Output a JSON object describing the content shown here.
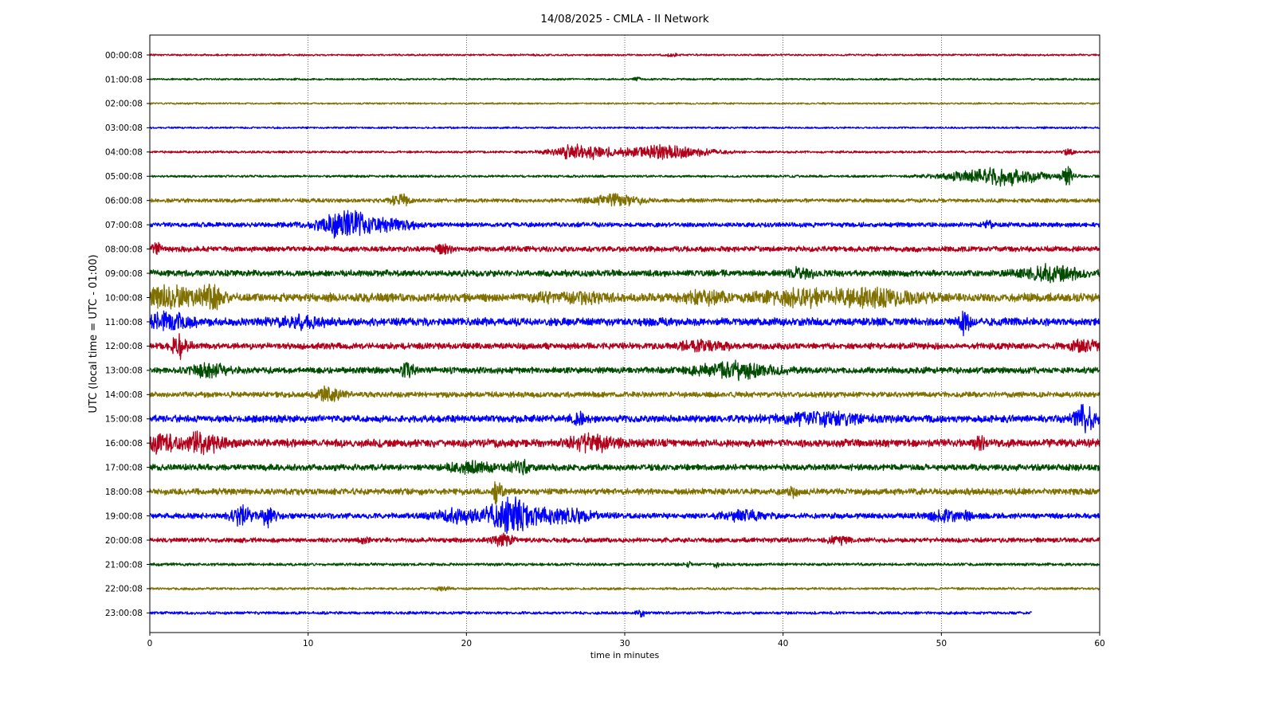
{
  "chart_data": {
    "type": "line",
    "title": "14/08/2025 - CMLA - II Network",
    "xlabel": "time in minutes",
    "ylabel": "UTC (local time = UTC - 01:00)",
    "xlim": [
      0,
      60
    ],
    "x_ticks": [
      "0",
      "10",
      "20",
      "30",
      "40",
      "50",
      "60"
    ],
    "grid": "vertical dotted",
    "colors": [
      "#b2001a",
      "#004c00",
      "#807000",
      "#0000ff"
    ],
    "rows": [
      {
        "label": "00:00:08",
        "end_minute": 60,
        "base_amp": 0.12,
        "events": [
          {
            "t": 33,
            "w": 0.3,
            "a": 0.2
          }
        ]
      },
      {
        "label": "01:00:08",
        "end_minute": 60,
        "base_amp": 0.12,
        "events": [
          {
            "t": 30.8,
            "w": 0.2,
            "a": 0.3
          }
        ]
      },
      {
        "label": "02:00:08",
        "end_minute": 60,
        "base_amp": 0.11,
        "events": []
      },
      {
        "label": "03:00:08",
        "end_minute": 60,
        "base_amp": 0.12,
        "events": []
      },
      {
        "label": "04:00:08",
        "end_minute": 60,
        "base_amp": 0.15,
        "events": [
          {
            "t": 27.2,
            "w": 1.8,
            "a": 0.9
          },
          {
            "t": 32.5,
            "w": 2.6,
            "a": 0.85
          },
          {
            "t": 58,
            "w": 0.3,
            "a": 0.4
          }
        ]
      },
      {
        "label": "05:00:08",
        "end_minute": 60,
        "base_amp": 0.15,
        "events": [
          {
            "t": 53.5,
            "w": 3,
            "a": 1.05
          },
          {
            "t": 58,
            "w": 0.4,
            "a": 0.9
          }
        ]
      },
      {
        "label": "06:00:08",
        "end_minute": 60,
        "base_amp": 0.25,
        "events": [
          {
            "t": 15.8,
            "w": 0.6,
            "a": 0.7
          },
          {
            "t": 29.5,
            "w": 1.5,
            "a": 0.7
          }
        ]
      },
      {
        "label": "07:00:08",
        "end_minute": 60,
        "base_amp": 0.3,
        "events": [
          {
            "t": 12.4,
            "w": 1.6,
            "a": 1.8
          },
          {
            "t": 15.5,
            "w": 1.4,
            "a": 0.6
          },
          {
            "t": 53,
            "w": 0.3,
            "a": 0.5
          }
        ]
      },
      {
        "label": "08:00:08",
        "end_minute": 60,
        "base_amp": 0.35,
        "events": [
          {
            "t": 0.4,
            "w": 0.3,
            "a": 0.6
          },
          {
            "t": 18.5,
            "w": 0.5,
            "a": 0.5
          }
        ]
      },
      {
        "label": "09:00:08",
        "end_minute": 60,
        "base_amp": 0.4,
        "events": [
          {
            "t": 41.2,
            "w": 0.8,
            "a": 0.6
          },
          {
            "t": 57,
            "w": 2,
            "a": 0.8
          }
        ]
      },
      {
        "label": "10:00:08",
        "end_minute": 60,
        "base_amp": 0.55,
        "events": [
          {
            "t": 1.3,
            "w": 1.5,
            "a": 1.2
          },
          {
            "t": 3.8,
            "w": 0.8,
            "a": 1.3
          },
          {
            "t": 27,
            "w": 2,
            "a": 0.5
          },
          {
            "t": 35,
            "w": 1.5,
            "a": 0.5
          },
          {
            "t": 41,
            "w": 2.5,
            "a": 0.8
          },
          {
            "t": 46,
            "w": 2.5,
            "a": 0.9
          }
        ]
      },
      {
        "label": "11:00:08",
        "end_minute": 60,
        "base_amp": 0.5,
        "events": [
          {
            "t": 1.2,
            "w": 1.5,
            "a": 0.9
          },
          {
            "t": 9.5,
            "w": 1.5,
            "a": 0.6
          },
          {
            "t": 51.5,
            "w": 0.3,
            "a": 1.3
          }
        ]
      },
      {
        "label": "12:00:08",
        "end_minute": 60,
        "base_amp": 0.4,
        "events": [
          {
            "t": 1.9,
            "w": 0.5,
            "a": 1.6
          },
          {
            "t": 35,
            "w": 1.5,
            "a": 0.5
          },
          {
            "t": 59,
            "w": 1,
            "a": 0.6
          }
        ]
      },
      {
        "label": "13:00:08",
        "end_minute": 60,
        "base_amp": 0.4,
        "events": [
          {
            "t": 3.8,
            "w": 1.2,
            "a": 0.8
          },
          {
            "t": 16.3,
            "w": 0.5,
            "a": 0.7
          },
          {
            "t": 37,
            "w": 2.5,
            "a": 0.8
          }
        ]
      },
      {
        "label": "14:00:08",
        "end_minute": 60,
        "base_amp": 0.35,
        "events": [
          {
            "t": 11.3,
            "w": 0.8,
            "a": 0.9
          }
        ]
      },
      {
        "label": "15:00:08",
        "end_minute": 60,
        "base_amp": 0.45,
        "events": [
          {
            "t": 27,
            "w": 0.5,
            "a": 0.6
          },
          {
            "t": 42.5,
            "w": 3,
            "a": 0.6
          },
          {
            "t": 59,
            "w": 0.7,
            "a": 1.6
          }
        ]
      },
      {
        "label": "16:00:08",
        "end_minute": 60,
        "base_amp": 0.5,
        "events": [
          {
            "t": 0.5,
            "w": 0.8,
            "a": 1.3
          },
          {
            "t": 3.2,
            "w": 1.3,
            "a": 1.2
          },
          {
            "t": 28,
            "w": 1.5,
            "a": 0.8
          },
          {
            "t": 52.5,
            "w": 0.4,
            "a": 0.8
          }
        ]
      },
      {
        "label": "17:00:08",
        "end_minute": 60,
        "base_amp": 0.4,
        "events": [
          {
            "t": 20.5,
            "w": 1.5,
            "a": 0.6
          },
          {
            "t": 23.3,
            "w": 0.6,
            "a": 0.9
          }
        ]
      },
      {
        "label": "18:00:08",
        "end_minute": 60,
        "base_amp": 0.4,
        "events": [
          {
            "t": 22,
            "w": 0.3,
            "a": 1.6
          },
          {
            "t": 40.6,
            "w": 0.3,
            "a": 0.6
          }
        ]
      },
      {
        "label": "19:00:08",
        "end_minute": 60,
        "base_amp": 0.35,
        "events": [
          {
            "t": 5.8,
            "w": 0.6,
            "a": 1.2
          },
          {
            "t": 7.5,
            "w": 0.5,
            "a": 1.1
          },
          {
            "t": 19.5,
            "w": 1.5,
            "a": 0.8
          },
          {
            "t": 22.7,
            "w": 1.3,
            "a": 2.2
          },
          {
            "t": 26,
            "w": 2,
            "a": 0.8
          },
          {
            "t": 37.5,
            "w": 1.5,
            "a": 0.5
          },
          {
            "t": 50.5,
            "w": 1.5,
            "a": 0.6
          }
        ]
      },
      {
        "label": "20:00:08",
        "end_minute": 60,
        "base_amp": 0.3,
        "events": [
          {
            "t": 22.3,
            "w": 0.6,
            "a": 0.8
          },
          {
            "t": 13.5,
            "w": 0.3,
            "a": 0.4
          },
          {
            "t": 43.5,
            "w": 0.8,
            "a": 0.4
          }
        ]
      },
      {
        "label": "21:00:08",
        "end_minute": 60,
        "base_amp": 0.18,
        "events": [
          {
            "t": 34,
            "w": 0.2,
            "a": 0.3
          },
          {
            "t": 35.8,
            "w": 0.2,
            "a": 0.35
          }
        ]
      },
      {
        "label": "22:00:08",
        "end_minute": 60,
        "base_amp": 0.15,
        "events": [
          {
            "t": 18.5,
            "w": 0.5,
            "a": 0.2
          }
        ]
      },
      {
        "label": "23:00:08",
        "end_minute": 55.7,
        "base_amp": 0.18,
        "events": [
          {
            "t": 31,
            "w": 0.3,
            "a": 0.4
          }
        ]
      }
    ]
  }
}
